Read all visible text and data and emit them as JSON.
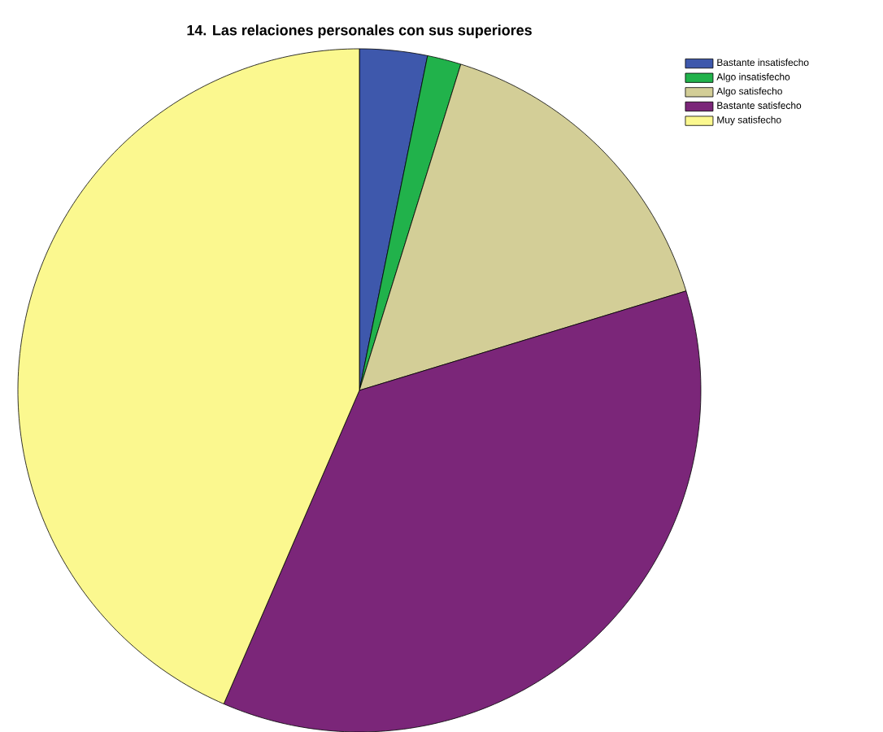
{
  "chart_data": {
    "type": "pie",
    "title": "14. Las relaciones personales con sus superiores",
    "categories": [
      "Bastante insatisfecho",
      "Algo insatisfecho",
      "Algo satisfecho",
      "Bastante satisfecho",
      "Muy satisfecho"
    ],
    "values": [
      3.2,
      1.6,
      15.5,
      36.2,
      43.5
    ],
    "colors": [
      "#3e58ac",
      "#21b24b",
      "#d3ce97",
      "#7b2679",
      "#fbf88f"
    ],
    "legend": "top right"
  }
}
